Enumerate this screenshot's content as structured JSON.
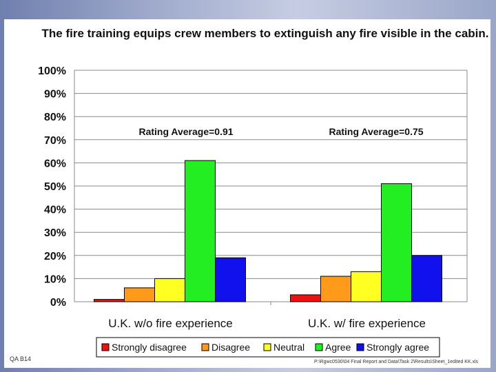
{
  "chart_data": {
    "type": "bar",
    "title": "The fire training equips crew members to extinguish any fire visible in the cabin.",
    "categories": [
      "U.K. w/o fire experience",
      "U.K. w/ fire experience"
    ],
    "series": [
      {
        "name": "Strongly disagree",
        "color": "#ee1111",
        "values": [
          1,
          3
        ]
      },
      {
        "name": "Disagree",
        "color": "#ff9a1a",
        "values": [
          6,
          11
        ]
      },
      {
        "name": "Neutral",
        "color": "#ffff22",
        "values": [
          10,
          13
        ]
      },
      {
        "name": "Agree",
        "color": "#22ee22",
        "values": [
          61,
          51
        ]
      },
      {
        "name": "Strongly agree",
        "color": "#1111ee",
        "values": [
          19,
          20
        ]
      }
    ],
    "ylim": [
      0,
      100
    ],
    "yticks": [
      "0%",
      "10%",
      "20%",
      "30%",
      "40%",
      "50%",
      "60%",
      "70%",
      "80%",
      "90%",
      "100%"
    ],
    "grid": true,
    "legend": "bottom",
    "annotations": [
      "Rating Average=0.91",
      "Rating Average=0.75"
    ]
  },
  "footer": {
    "code": "QA B14",
    "path": "P:\\Rgwc0530\\04 Final Report and Data\\Task 2\\Results\\Sheet_1edited KK.xls"
  }
}
